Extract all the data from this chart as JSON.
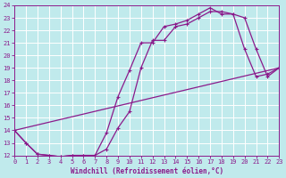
{
  "xlabel": "Windchill (Refroidissement éolien,°C)",
  "xlim": [
    0,
    23
  ],
  "ylim": [
    12,
    24
  ],
  "yticks": [
    12,
    13,
    14,
    15,
    16,
    17,
    18,
    19,
    20,
    21,
    22,
    23,
    24
  ],
  "xticks": [
    0,
    1,
    2,
    3,
    4,
    5,
    6,
    7,
    8,
    9,
    10,
    11,
    12,
    13,
    14,
    15,
    16,
    17,
    18,
    19,
    20,
    21,
    22,
    23
  ],
  "background_color": "#c0eaec",
  "grid_color": "#ffffff",
  "line_color": "#8b1a8b",
  "line1_x": [
    0,
    1,
    2,
    3,
    4,
    5,
    6,
    7,
    8,
    9,
    10,
    11,
    12,
    13,
    14,
    15,
    16,
    17,
    18,
    19,
    20,
    21,
    22,
    23
  ],
  "line1_y": [
    14.0,
    13.0,
    12.1,
    12.0,
    11.9,
    12.0,
    12.0,
    12.0,
    13.8,
    16.7,
    18.8,
    21.0,
    21.0,
    22.3,
    22.5,
    22.8,
    23.3,
    23.8,
    23.3,
    23.3,
    20.5,
    18.3,
    18.5,
    19.0
  ],
  "line2_x": [
    0,
    1,
    2,
    3,
    4,
    5,
    6,
    7,
    8,
    9,
    10,
    11,
    12,
    13,
    14,
    15,
    16,
    17,
    18,
    19,
    20,
    21,
    22,
    23
  ],
  "line2_y": [
    14.0,
    13.0,
    12.1,
    12.0,
    11.9,
    12.0,
    12.0,
    12.0,
    12.5,
    14.2,
    15.5,
    19.0,
    21.2,
    21.2,
    22.3,
    22.5,
    23.0,
    23.5,
    23.5,
    23.3,
    23.0,
    20.5,
    18.3,
    19.0
  ],
  "line3_x": [
    0,
    23
  ],
  "line3_y": [
    14.0,
    19.0
  ],
  "markersize": 3,
  "linewidth": 0.9
}
